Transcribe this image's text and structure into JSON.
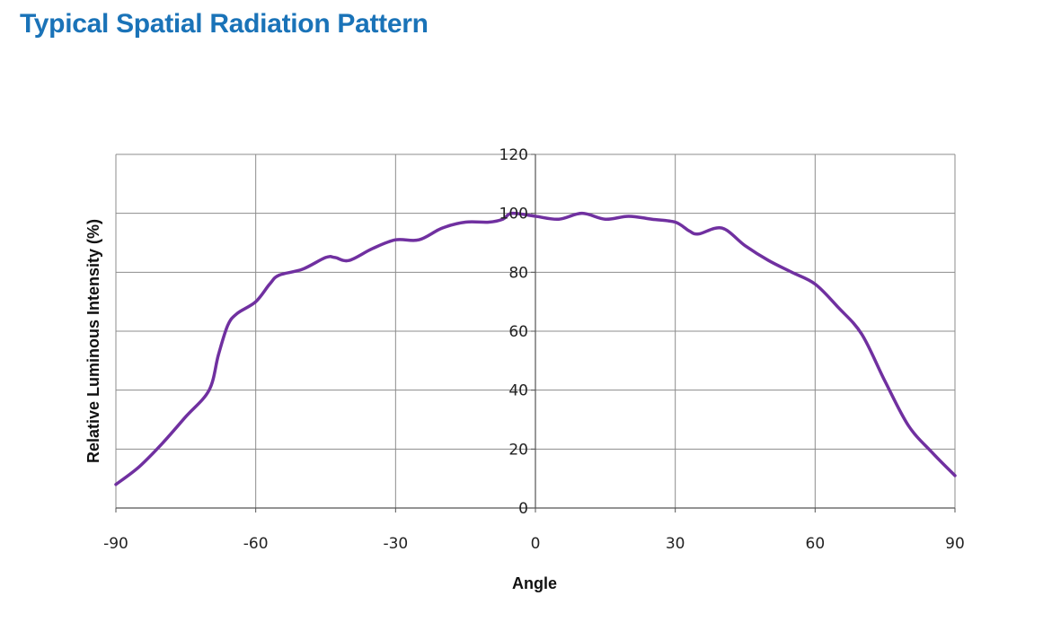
{
  "page": {
    "title": "Typical Spatial Radiation Pattern"
  },
  "colors": {
    "title": "#1a73b8",
    "series": "#7030a0",
    "grid": "#8c8c8c"
  },
  "chart_data": {
    "type": "line",
    "title": "Typical Spatial Radiation Pattern",
    "xlabel": "Angle",
    "ylabel": "Relative Luminous Intensity (%)",
    "xlim": [
      -90,
      90
    ],
    "ylim": [
      0,
      120
    ],
    "x_ticks": [
      -90,
      -60,
      -30,
      0,
      30,
      60,
      90
    ],
    "y_ticks": [
      0,
      20,
      40,
      60,
      80,
      100,
      120
    ],
    "grid": true,
    "legend": "none",
    "series": [
      {
        "color": "#7030a0",
        "x": [
          -90,
          -85,
          -80,
          -75,
          -70,
          -68,
          -66,
          -64,
          -60,
          -57,
          -55,
          -50,
          -45,
          -43,
          -40,
          -35,
          -30,
          -25,
          -20,
          -15,
          -10,
          -7,
          -5,
          0,
          5,
          10,
          15,
          20,
          25,
          30,
          33,
          35,
          40,
          45,
          50,
          55,
          60,
          65,
          70,
          75,
          80,
          85,
          90
        ],
        "y": [
          8,
          14,
          22,
          31,
          40,
          52,
          62,
          66,
          70,
          76,
          79,
          81,
          85,
          85,
          84,
          88,
          91,
          91,
          95,
          97,
          97,
          98,
          100,
          99,
          98,
          100,
          98,
          99,
          98,
          97,
          94,
          93,
          95,
          89,
          84,
          80,
          76,
          68,
          59,
          43,
          28,
          19,
          11
        ]
      }
    ]
  }
}
